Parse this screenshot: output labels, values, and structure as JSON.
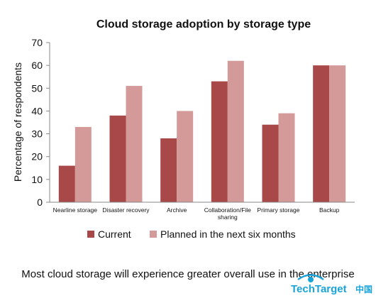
{
  "chart_data": {
    "type": "bar",
    "title": "Cloud storage adoption by storage type",
    "ylabel": "Percentage of respondents",
    "xlabel": "",
    "ylim": [
      0,
      70
    ],
    "yticks": [
      0,
      10,
      20,
      30,
      40,
      50,
      60,
      70
    ],
    "grid": false,
    "legend_position": "bottom",
    "categories": [
      [
        "Nearline storage"
      ],
      [
        "Disaster recovery"
      ],
      [
        "Archive"
      ],
      [
        "Collaboration/File",
        "sharing"
      ],
      [
        "Primary storage"
      ],
      [
        "Backup"
      ]
    ],
    "series": [
      {
        "name": "Current",
        "color": "#a84848",
        "values": [
          16,
          38,
          28,
          53,
          34,
          60
        ]
      },
      {
        "name": "Planned in the next six months",
        "color": "#d49a9a",
        "values": [
          33,
          51,
          40,
          62,
          39,
          60
        ]
      }
    ]
  },
  "caption": "Most cloud storage will experience greater overall use in the enterprise",
  "logo": {
    "text": "TechTarget",
    "suffix": "中国",
    "color": "#1aa3d9",
    "icon": "techtarget-eye-logo"
  }
}
